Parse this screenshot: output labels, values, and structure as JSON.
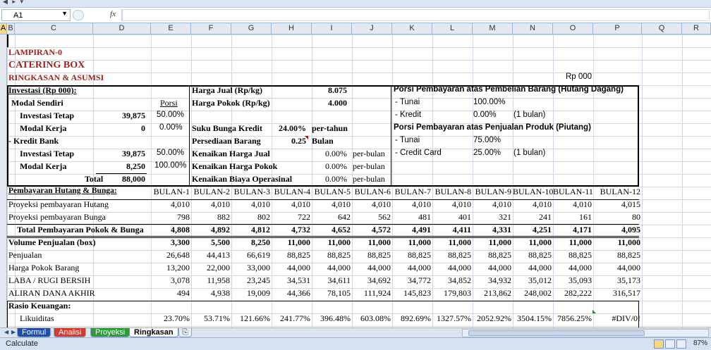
{
  "app": {
    "cell_ref": "A1",
    "fx_label": "fx",
    "formula_value": ""
  },
  "columns": [
    "A",
    "B",
    "C",
    "D",
    "E",
    "F",
    "G",
    "H",
    "I",
    "J",
    "K",
    "L",
    "M",
    "N",
    "O",
    "P",
    "Q",
    "R"
  ],
  "titles": {
    "lampiran": "LAMPIRAN-0",
    "catering": "CATERING BOX",
    "ringkasan": "RINGKASAN & ASUMSI",
    "unit": "Rp 000"
  },
  "investasi": {
    "header": "Investasi (Rp 000):",
    "modal_sendiri": "Modal Sendiri",
    "porsi_label": "Porsi",
    "inv_tetap_label": "Investasi Tetap",
    "inv_tetap_value": "39,875",
    "inv_tetap_pct": "50.00%",
    "modal_kerja_label": "Modal Kerja",
    "modal_kerja_value": "0",
    "modal_kerja_pct": "0.00%",
    "kredit_bank": "- Kredit Bank",
    "kb_inv_tetap_value": "39,875",
    "kb_inv_tetap_pct": "50.00%",
    "kb_modal_kerja_value": "8,250",
    "kb_modal_kerja_pct": "100.00%",
    "total_label": "Total",
    "total_value": "88,000"
  },
  "asumsi": {
    "harga_jual_label": "Harga Jual (Rp/kg)",
    "harga_jual_value": "8.075",
    "harga_pokok_label": "Harga Pokok (Rp/kg)",
    "harga_pokok_value": "4.000",
    "suku_bunga_label": "Suku Bunga Kredit",
    "suku_bunga_value": "24.00%",
    "suku_bunga_unit": "per-tahun",
    "persediaan_label": "Persediaan Barang",
    "persediaan_value": "0.25",
    "persediaan_unit": "Bulan",
    "kenaikan_jual_label": "Kenaikan Harga Jual",
    "kenaikan_jual_value": "0.00%",
    "kenaikan_jual_unit": "per-bulan",
    "kenaikan_pokok_label": "Kenaikan Harga Pokok",
    "kenaikan_pokok_value": "0.00%",
    "kenaikan_pokok_unit": "per-bulan",
    "kenaikan_biaya_label": "Kenaikan Biaya Operasinal",
    "kenaikan_biaya_value": "0.00%",
    "kenaikan_biaya_unit": "per-bulan"
  },
  "porsi": {
    "hutang_title": "Porsi Pembayaran atas Pembelian Barang (Hutang Dagang)",
    "tunai_label": "- Tunai",
    "hutang_tunai": "100.00%",
    "kredit_label": "- Kredit",
    "hutang_kredit": "0.00%",
    "hutang_kredit_note": "(1 bulan)",
    "piutang_title": "Porsi Pembayaran atas Penjualan Produk (Piutang)",
    "piutang_tunai": "75.00%",
    "cc_label": "- Credit Card",
    "piutang_cc": "25.00%",
    "piutang_cc_note": "(1 bulan)"
  },
  "months": [
    "BULAN-1",
    "BULAN-2",
    "BULAN-3",
    "BULAN-4",
    "BULAN-5",
    "BULAN-6",
    "BULAN-7",
    "BULAN-8",
    "BULAN-9",
    "BULAN-10",
    "BULAN-11",
    "BULAN-12"
  ],
  "table": {
    "pembayaran_header": "Pembayaran Hutang & Bunga:",
    "rows": [
      {
        "label": "Proyeksi pembayaran Hutang",
        "values": [
          "4,010",
          "4,010",
          "4,010",
          "4,010",
          "4,010",
          "4,010",
          "4,010",
          "4,010",
          "4,010",
          "4,010",
          "4,010",
          "4,015"
        ]
      },
      {
        "label": "Proyeksi pembayaran Bunga",
        "values": [
          "798",
          "882",
          "802",
          "722",
          "642",
          "562",
          "481",
          "401",
          "321",
          "241",
          "161",
          "80"
        ]
      },
      {
        "label": "Total Pembayaran Pokok & Bunga",
        "values": [
          "4,808",
          "4,892",
          "4,812",
          "4,732",
          "4,652",
          "4,572",
          "4,491",
          "4,411",
          "4,331",
          "4,251",
          "4,171",
          "4,095"
        ]
      },
      {
        "label": "Volume Penjualan (box)",
        "values": [
          "3,300",
          "5,500",
          "8,250",
          "11,000",
          "11,000",
          "11,000",
          "11,000",
          "11,000",
          "11,000",
          "11,000",
          "11,000",
          "11,000"
        ]
      },
      {
        "label": "Penjualan",
        "values": [
          "26,648",
          "44,413",
          "66,619",
          "88,825",
          "88,825",
          "88,825",
          "88,825",
          "88,825",
          "88,825",
          "88,825",
          "88,825",
          "88,825"
        ]
      },
      {
        "label": "Harga Pokok Barang",
        "values": [
          "13,200",
          "22,000",
          "33,000",
          "44,000",
          "44,000",
          "44,000",
          "44,000",
          "44,000",
          "44,000",
          "44,000",
          "44,000",
          "44,000"
        ]
      },
      {
        "label": "LABA / RUGI BERSIH",
        "values": [
          "3,078",
          "11,958",
          "23,245",
          "34,531",
          "34,611",
          "34,692",
          "34,772",
          "34,852",
          "34,932",
          "35,012",
          "35,093",
          "35,173"
        ]
      },
      {
        "label": "ALIRAN DANA AKHIR",
        "values": [
          "494",
          "4,938",
          "19,009",
          "44,366",
          "78,105",
          "111,924",
          "145,823",
          "179,803",
          "213,862",
          "248,002",
          "282,222",
          "316,517"
        ]
      }
    ],
    "rasio_header": "Rasio Keuangan:",
    "likuiditas_label": "Likuiditas",
    "likuiditas": [
      "23.70%",
      "53.71%",
      "121.66%",
      "241.77%",
      "396.48%",
      "603.08%",
      "892.69%",
      "1327.57%",
      "2052.92%",
      "3504.15%",
      "7856.25%",
      "#DIV/0!"
    ]
  },
  "sheets": [
    "Formul",
    "Analisi",
    "Proyeksi",
    "Ringkasan"
  ],
  "active_sheet": "Ringkasan",
  "status": {
    "mode": "Calculate",
    "zoom": "87%"
  }
}
